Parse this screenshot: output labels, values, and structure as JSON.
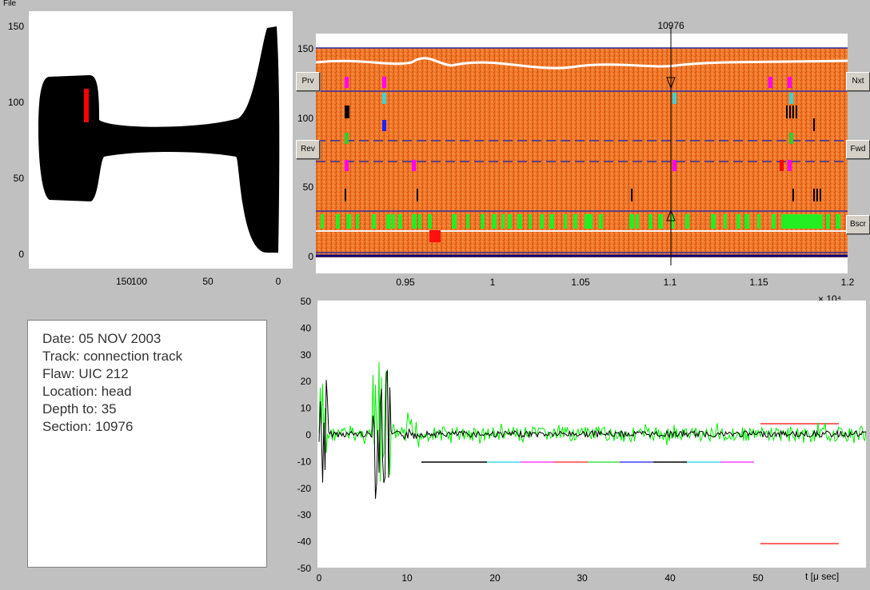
{
  "menu": {
    "file_label": "File"
  },
  "rail_profile": {
    "y_ticks": [
      "0",
      "50",
      "100",
      "150"
    ],
    "x_ticks": [
      "150",
      "100",
      "50",
      "0"
    ]
  },
  "bscan": {
    "section_label": "10976",
    "y_ticks": [
      "0",
      "50",
      "100",
      "150"
    ],
    "x_ticks": [
      "0.95",
      "1",
      "1.05",
      "1.1",
      "1.15",
      "1.2"
    ],
    "x_exponent": "× 10⁴"
  },
  "buttons": {
    "prev": "Prv",
    "next": "Nxt",
    "rev": "Rev",
    "fwd": "Fwd",
    "bscan": "Bscr"
  },
  "info": {
    "date": "Date: 05 NOV 2003",
    "track": "Track: connection track",
    "flaw": "Flaw: UIC 212",
    "location": "Location: head",
    "depth": "Depth to: 35",
    "section": "Section: 10976"
  },
  "ascan": {
    "y_ticks": [
      "50",
      "40",
      "30",
      "20",
      "10",
      "0",
      "-10",
      "-20",
      "-30",
      "-40",
      "-50"
    ],
    "x_ticks": [
      "0",
      "10",
      "20",
      "30",
      "40",
      "50"
    ],
    "x_axis_label": "t [μ sec]"
  },
  "colors": {
    "bscan_background": "#f07a2a",
    "rail_fill": "#000000",
    "probe_marker": "#ff0000",
    "signal_green": "#00ee00",
    "signal_black": "#000000"
  }
}
